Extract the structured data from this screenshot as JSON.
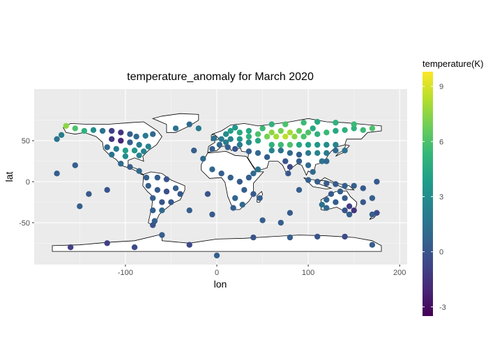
{
  "chart_data": {
    "type": "heatmap",
    "title": "temperature_anomaly for March 2020",
    "xlabel": "lon",
    "ylabel": "lat",
    "xlim": [
      -180,
      180
    ],
    "ylim": [
      -90,
      90
    ],
    "x_ticks": [
      -100,
      0,
      100,
      200
    ],
    "y_ticks": [
      -50,
      0,
      50
    ],
    "x_tick_labels": [
      "-100",
      "0",
      "100",
      "200"
    ],
    "y_tick_labels": [
      "-50",
      "0",
      "50"
    ],
    "panel_background": "#ebebeb",
    "grid": true,
    "legend": {
      "title": "temperature(K)",
      "position": "right",
      "min": -3.5,
      "max": 9.8,
      "ticks": [
        -3,
        0,
        3,
        6,
        9
      ],
      "tick_labels": [
        "-3",
        "0",
        "3",
        "6",
        "9"
      ],
      "palette": [
        "#440154",
        "#482878",
        "#3e4989",
        "#31688e",
        "#26828e",
        "#1f9e89",
        "#35b779",
        "#6ece58",
        "#b5de2b",
        "#fde725"
      ]
    },
    "points": [
      [
        -165,
        68,
        7.5
      ],
      [
        -155,
        65,
        6.0
      ],
      [
        -145,
        62,
        5.0
      ],
      [
        -135,
        63,
        3.0
      ],
      [
        -125,
        62,
        1.5
      ],
      [
        -115,
        62,
        -1.0
      ],
      [
        -105,
        60,
        -1.5
      ],
      [
        -95,
        58,
        0.5
      ],
      [
        -88,
        55,
        1.0
      ],
      [
        -78,
        56,
        2.0
      ],
      [
        -70,
        58,
        1.0
      ],
      [
        -115,
        52,
        -1.5
      ],
      [
        -105,
        50,
        -2.0
      ],
      [
        -95,
        48,
        0.5
      ],
      [
        -85,
        45,
        2.0
      ],
      [
        -75,
        43,
        2.5
      ],
      [
        -120,
        42,
        1.0
      ],
      [
        -110,
        40,
        2.0
      ],
      [
        -100,
        38,
        4.0
      ],
      [
        -90,
        38,
        3.5
      ],
      [
        -80,
        37,
        2.5
      ],
      [
        -115,
        33,
        1.5
      ],
      [
        -100,
        31,
        3.0
      ],
      [
        -85,
        32,
        2.5
      ],
      [
        -105,
        22,
        1.0
      ],
      [
        -95,
        18,
        0.5
      ],
      [
        -85,
        13,
        1.0
      ],
      [
        -77,
        5,
        0.5
      ],
      [
        -65,
        5,
        0.5
      ],
      [
        -55,
        3,
        0.0
      ],
      [
        -75,
        -5,
        0.5
      ],
      [
        -65,
        -10,
        0.3
      ],
      [
        -55,
        -12,
        -0.2
      ],
      [
        -45,
        -8,
        0.5
      ],
      [
        -40,
        -15,
        0.2
      ],
      [
        -70,
        -20,
        0.5
      ],
      [
        -60,
        -25,
        0.0
      ],
      [
        -50,
        -25,
        0.2
      ],
      [
        -70,
        -35,
        0.5
      ],
      [
        -60,
        -35,
        1.0
      ],
      [
        -68,
        -48,
        0.5
      ],
      [
        -70,
        -53,
        0.0
      ],
      [
        -45,
        65,
        1.5
      ],
      [
        -30,
        70,
        1.0
      ],
      [
        -20,
        65,
        2.0
      ],
      [
        -170,
        57,
        2.0
      ],
      [
        -175,
        52,
        1.5
      ],
      [
        -155,
        20,
        0.5
      ],
      [
        -140,
        -15,
        0.2
      ],
      [
        -120,
        -10,
        0.0
      ],
      [
        -25,
        38,
        0.5
      ],
      [
        -15,
        28,
        1.0
      ],
      [
        -5,
        15,
        1.0
      ],
      [
        5,
        10,
        0.5
      ],
      [
        15,
        5,
        0.5
      ],
      [
        25,
        0,
        0.2
      ],
      [
        30,
        -10,
        0.5
      ],
      [
        20,
        -20,
        0.8
      ],
      [
        28,
        -28,
        1.0
      ],
      [
        18,
        -32,
        0.5
      ],
      [
        40,
        -15,
        0.3
      ],
      [
        47,
        -20,
        0.5
      ],
      [
        35,
        5,
        0.5
      ],
      [
        40,
        10,
        1.0
      ],
      [
        45,
        15,
        1.5
      ],
      [
        -5,
        40,
        0.5
      ],
      [
        3,
        45,
        1.0
      ],
      [
        10,
        48,
        2.0
      ],
      [
        15,
        52,
        2.5
      ],
      [
        5,
        52,
        2.0
      ],
      [
        -3,
        53,
        1.5
      ],
      [
        10,
        58,
        3.0
      ],
      [
        15,
        62,
        4.0
      ],
      [
        20,
        66,
        3.5
      ],
      [
        25,
        60,
        4.5
      ],
      [
        25,
        52,
        3.5
      ],
      [
        25,
        45,
        2.0
      ],
      [
        12,
        42,
        0.5
      ],
      [
        20,
        40,
        0.0
      ],
      [
        35,
        37,
        0.5
      ],
      [
        45,
        35,
        1.0
      ],
      [
        55,
        30,
        0.5
      ],
      [
        35,
        48,
        3.0
      ],
      [
        35,
        55,
        5.0
      ],
      [
        35,
        62,
        4.5
      ],
      [
        45,
        58,
        6.0
      ],
      [
        45,
        50,
        4.5
      ],
      [
        50,
        65,
        5.5
      ],
      [
        55,
        55,
        7.0
      ],
      [
        60,
        60,
        7.5
      ],
      [
        65,
        55,
        8.0
      ],
      [
        70,
        62,
        7.0
      ],
      [
        75,
        55,
        8.5
      ],
      [
        80,
        60,
        8.0
      ],
      [
        85,
        55,
        7.5
      ],
      [
        90,
        62,
        6.5
      ],
      [
        95,
        55,
        6.0
      ],
      [
        100,
        60,
        6.0
      ],
      [
        105,
        65,
        4.5
      ],
      [
        110,
        58,
        5.0
      ],
      [
        120,
        60,
        5.5
      ],
      [
        130,
        62,
        4.5
      ],
      [
        140,
        63,
        5.0
      ],
      [
        150,
        65,
        5.0
      ],
      [
        160,
        63,
        5.5
      ],
      [
        170,
        65,
        6.0
      ],
      [
        60,
        70,
        5.0
      ],
      [
        75,
        70,
        6.0
      ],
      [
        95,
        72,
        5.5
      ],
      [
        110,
        73,
        4.5
      ],
      [
        130,
        72,
        5.0
      ],
      [
        150,
        70,
        5.5
      ],
      [
        60,
        45,
        5.0
      ],
      [
        70,
        45,
        5.5
      ],
      [
        80,
        45,
        6.0
      ],
      [
        90,
        45,
        4.5
      ],
      [
        100,
        45,
        4.0
      ],
      [
        110,
        45,
        3.5
      ],
      [
        120,
        45,
        3.0
      ],
      [
        130,
        45,
        2.5
      ],
      [
        60,
        38,
        2.5
      ],
      [
        70,
        38,
        1.5
      ],
      [
        80,
        35,
        1.0
      ],
      [
        90,
        33,
        0.5
      ],
      [
        100,
        35,
        2.0
      ],
      [
        110,
        35,
        2.5
      ],
      [
        120,
        35,
        2.0
      ],
      [
        75,
        25,
        0.0
      ],
      [
        80,
        18,
        -0.5
      ],
      [
        78,
        10,
        0.2
      ],
      [
        90,
        25,
        0.5
      ],
      [
        100,
        20,
        1.0
      ],
      [
        105,
        12,
        1.0
      ],
      [
        115,
        25,
        1.5
      ],
      [
        120,
        25,
        1.0
      ],
      [
        140,
        38,
        1.5
      ],
      [
        130,
        38,
        1.0
      ],
      [
        100,
        2,
        0.5
      ],
      [
        110,
        0,
        0.5
      ],
      [
        120,
        -2,
        0.3
      ],
      [
        130,
        -3,
        0.3
      ],
      [
        140,
        -5,
        0.5
      ],
      [
        150,
        -5,
        0.5
      ],
      [
        160,
        -8,
        0.2
      ],
      [
        135,
        -12,
        0.5
      ],
      [
        125,
        -15,
        0.3
      ],
      [
        120,
        -22,
        0.8
      ],
      [
        130,
        -25,
        0.5
      ],
      [
        140,
        -20,
        0.3
      ],
      [
        145,
        -30,
        -1.0
      ],
      [
        150,
        -35,
        -1.5
      ],
      [
        140,
        -35,
        0.0
      ],
      [
        120,
        -32,
        1.0
      ],
      [
        115,
        -28,
        1.5
      ],
      [
        145,
        -40,
        0.5
      ],
      [
        170,
        -40,
        0.5
      ],
      [
        175,
        -38,
        -0.5
      ],
      [
        160,
        -25,
        0.2
      ],
      [
        170,
        -20,
        0.5
      ],
      [
        -120,
        -75,
        -1.0
      ],
      [
        -60,
        -65,
        0.5
      ],
      [
        -30,
        -77,
        -0.5
      ],
      [
        0,
        -90,
        0.5
      ],
      [
        40,
        -68,
        0.0
      ],
      [
        80,
        -68,
        0.5
      ],
      [
        110,
        -67,
        0.0
      ],
      [
        140,
        -67,
        -0.5
      ],
      [
        170,
        -77,
        0.5
      ],
      [
        -160,
        -80,
        -1.0
      ],
      [
        -90,
        -80,
        -0.5
      ],
      [
        70,
        -50,
        0.5
      ],
      [
        50,
        -47,
        0.5
      ],
      [
        80,
        -38,
        0.3
      ],
      [
        90,
        -10,
        0.5
      ],
      [
        -5,
        -40,
        0.3
      ],
      [
        -30,
        -35,
        0.5
      ],
      [
        -10,
        -15,
        0.0
      ],
      [
        -150,
        -30,
        0.5
      ],
      [
        -175,
        10,
        0.5
      ],
      [
        175,
        0,
        0.3
      ]
    ]
  }
}
